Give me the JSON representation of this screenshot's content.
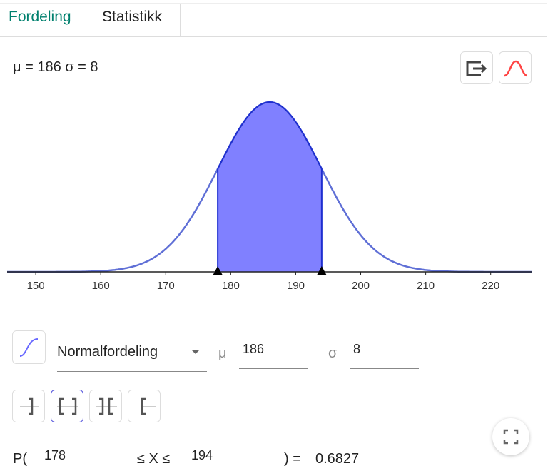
{
  "tabs": [
    {
      "label": "Fordeling",
      "active": true
    },
    {
      "label": "Statistikk",
      "active": false
    }
  ],
  "params_label": "μ = 186 σ = 8",
  "toolbar": {
    "export_icon": "export-icon",
    "style_icon": "normal-curve-icon"
  },
  "chart_data": {
    "type": "area",
    "distribution": "normal",
    "mean": 186,
    "sd": 8,
    "xlim": [
      145.6,
      226.4
    ],
    "xticks": [
      150,
      160,
      170,
      180,
      190,
      200,
      210,
      220
    ],
    "shaded_interval": [
      178,
      194
    ],
    "colors": {
      "curve": "#5f6fd6",
      "fill": "#8080ff",
      "edge": "#1f2fd0"
    }
  },
  "controls": {
    "cumulative_icon": "cdf-icon",
    "distribution": "Normalfordeling",
    "mu_label": "μ",
    "mu": "186",
    "sigma_label": "σ",
    "sigma": "8"
  },
  "interval_buttons": [
    {
      "name": "left-sided",
      "selected": false
    },
    {
      "name": "interval",
      "selected": true
    },
    {
      "name": "two-tailed",
      "selected": false
    },
    {
      "name": "right-sided",
      "selected": false
    }
  ],
  "probability": {
    "prefix": "P(",
    "lower": "178",
    "middle": "≤ X ≤",
    "upper": "194",
    "suffix": ") =",
    "result": "0.6827"
  }
}
